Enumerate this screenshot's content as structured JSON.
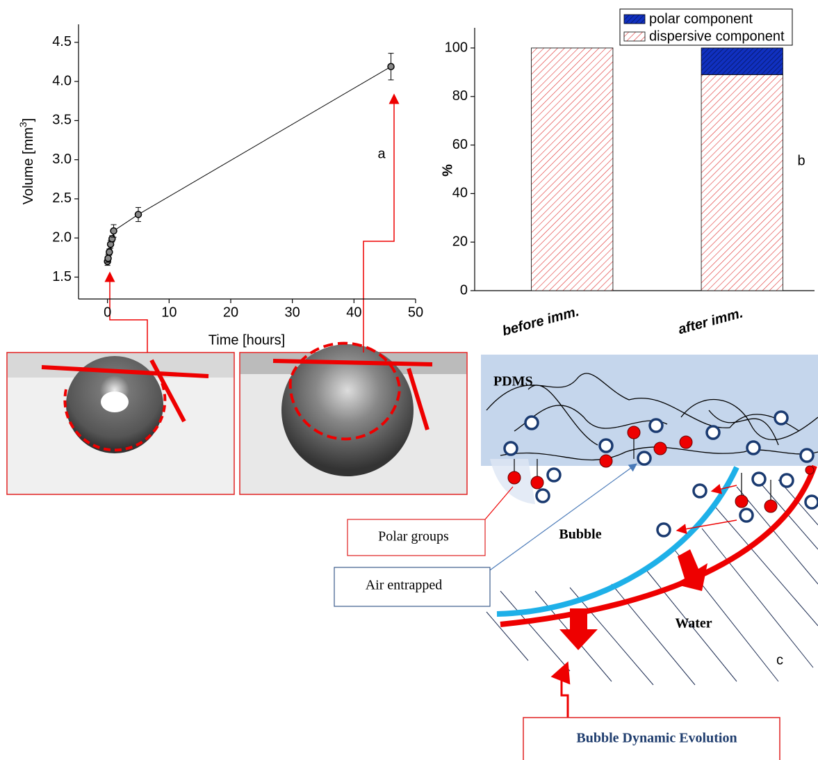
{
  "chart_data": [
    {
      "type": "line",
      "y_label": "Volume [mm",
      "y_label_sup": "3",
      "y_label_end": "]",
      "x_label": "Time [hours]",
      "annotation": "a",
      "x": [
        0,
        0.1,
        0.3,
        0.5,
        0.75,
        1,
        5,
        46
      ],
      "values": [
        1.7,
        1.74,
        1.82,
        1.92,
        1.99,
        2.09,
        2.3,
        4.19
      ],
      "errors": [
        0.05,
        0.05,
        0.04,
        0.05,
        0.04,
        0.08,
        0.09,
        0.17
      ],
      "color": "#000000",
      "xlim": [
        -4.7,
        50
      ],
      "xticks": [
        0,
        10,
        20,
        30,
        40,
        50
      ],
      "ylim": [
        1.22,
        4.73
      ],
      "yticks": [
        {
          "value": 1.5,
          "label": "1.5"
        },
        {
          "value": 2,
          "label": "2.0"
        },
        {
          "value": 2.5,
          "label": "2.5"
        },
        {
          "value": 3,
          "label": "3.0"
        },
        {
          "value": 3.5,
          "label": "3.5"
        },
        {
          "value": 4,
          "label": "4.0"
        },
        {
          "value": 4.5,
          "label": "4.5"
        }
      ]
    },
    {
      "type": "stacked-bar",
      "y_label": "%",
      "annotation": "b",
      "categories": [
        "before imm.",
        "after imm."
      ],
      "series": [
        {
          "name": "dispersive component",
          "color": "#e03030",
          "values": [
            100,
            89
          ]
        },
        {
          "name": "polar component",
          "color": "#1030c0",
          "values": [
            0,
            11
          ]
        }
      ],
      "ylim": [
        0,
        108.3
      ],
      "yticks": [
        0,
        20,
        40,
        60,
        80,
        100
      ],
      "legend": "upper right"
    }
  ],
  "diagram": {
    "material": "PDMS",
    "bubble": "Bubble",
    "water": "Water",
    "panel": "c",
    "polar_groups": "Polar groups",
    "air_entrapped": "Air entrapped",
    "evolution": "Bubble Dynamic Evolution"
  }
}
